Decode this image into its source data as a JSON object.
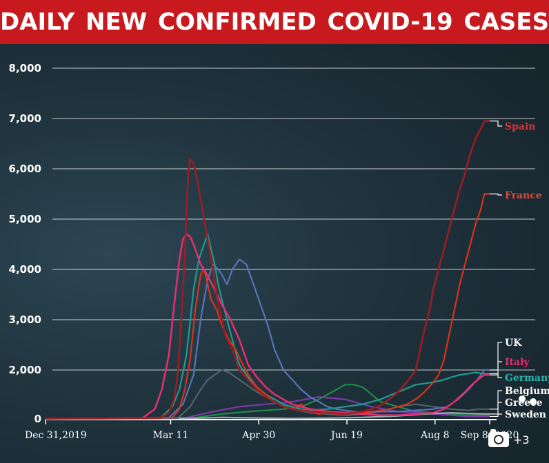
{
  "title": "DAILY  NEW CONFIRMED COVID-19 CASES",
  "badge": {
    "count": "+3",
    "icon": "camera-icon"
  },
  "colors": {
    "Spain": "#9e1c22",
    "France": "#d9331c",
    "UK": "#5a72b8",
    "Italy": "#e0306e",
    "Germany": "#1f9b92",
    "Belgium": "#55606a",
    "Greece": "#9fa6ab",
    "Sweden": "#7a3aa8",
    "Greenish": "#1e8a4a"
  },
  "chart_data": {
    "type": "line",
    "title": "DAILY  NEW CONFIRMED COVID-19 CASES",
    "xlabel": "",
    "ylabel": "",
    "x_ticks": [
      "Dec 31,2019",
      "Mar 11",
      "Apr 30",
      "Jun 19",
      "Aug 8",
      "Sep 8, 2020"
    ],
    "x_tick_day": [
      0,
      71,
      121,
      171,
      221,
      252
    ],
    "y_ticks": [
      "0",
      "2,000",
      "3,000",
      "4,000",
      "5,000",
      "6,000",
      "7,000",
      "8,000"
    ],
    "y_tick_values": [
      0,
      2000,
      3000,
      4000,
      5000,
      6000,
      7000,
      8000
    ],
    "ylim": [
      0,
      8000
    ],
    "xlim_day": [
      0,
      252
    ],
    "grid": true,
    "series": [
      {
        "name": "Spain",
        "x": [
          0,
          65,
          70,
          73,
          75,
          77,
          79,
          80,
          81,
          82,
          84,
          86,
          88,
          90,
          94,
          98,
          102,
          106,
          110,
          115,
          120,
          125,
          130,
          135,
          140,
          145,
          150,
          160,
          170,
          180,
          185,
          190,
          195,
          200,
          205,
          210,
          215,
          218,
          220,
          223,
          226,
          229,
          232,
          235,
          238,
          241,
          244,
          247,
          249,
          252
        ],
        "y": [
          0,
          30,
          250,
          800,
          1800,
          3000,
          4200,
          5200,
          5900,
          6200,
          6100,
          5800,
          5400,
          5000,
          4200,
          3300,
          2700,
          2400,
          2000,
          1600,
          1200,
          900,
          700,
          500,
          400,
          350,
          300,
          250,
          200,
          300,
          400,
          550,
          800,
          1100,
          1500,
          2000,
          2800,
          3200,
          3600,
          4000,
          4400,
          4800,
          5200,
          5600,
          5900,
          6300,
          6600,
          6800,
          6950,
          6950
        ]
      },
      {
        "name": "France",
        "x": [
          0,
          72,
          76,
          79,
          82,
          85,
          88,
          90,
          92,
          94,
          97,
          100,
          104,
          108,
          112,
          116,
          120,
          125,
          130,
          135,
          140,
          145,
          150,
          155,
          160,
          165,
          170,
          175,
          180,
          185,
          190,
          195,
          200,
          205,
          210,
          215,
          220,
          223,
          226,
          229,
          232,
          235,
          238,
          241,
          244,
          247,
          249,
          252
        ],
        "y": [
          0,
          50,
          400,
          1200,
          2200,
          3200,
          3900,
          4000,
          3700,
          3400,
          3200,
          2900,
          2600,
          2400,
          2100,
          1700,
          1300,
          1000,
          700,
          500,
          400,
          600,
          300,
          200,
          250,
          200,
          250,
          300,
          250,
          300,
          350,
          400,
          500,
          600,
          800,
          1100,
          1500,
          1800,
          2200,
          2700,
          3200,
          3700,
          4100,
          4500,
          4900,
          5200,
          5500,
          5500
        ]
      },
      {
        "name": "UK",
        "x": [
          0,
          70,
          78,
          84,
          88,
          92,
          95,
          98,
          100,
          103,
          106,
          110,
          114,
          118,
          122,
          126,
          130,
          135,
          140,
          145,
          150,
          155,
          160,
          165,
          170,
          175,
          180,
          190,
          200,
          210,
          220,
          228,
          234,
          240,
          245,
          249,
          252
        ],
        "y": [
          0,
          50,
          600,
          1800,
          3000,
          3800,
          4100,
          4000,
          3900,
          3700,
          4000,
          4200,
          4100,
          3700,
          3300,
          2900,
          2400,
          2000,
          1600,
          1200,
          900,
          700,
          500,
          400,
          350,
          300,
          250,
          300,
          300,
          350,
          400,
          500,
          800,
          1200,
          1600,
          2000,
          2000
        ]
      },
      {
        "name": "Italy",
        "x": [
          0,
          55,
          62,
          66,
          70,
          73,
          76,
          78,
          80,
          82,
          84,
          86,
          88,
          90,
          93,
          96,
          100,
          105,
          110,
          115,
          120,
          125,
          130,
          135,
          140,
          150,
          160,
          170,
          180,
          190,
          200,
          210,
          220,
          226,
          232,
          238,
          242,
          246,
          249,
          252
        ],
        "y": [
          0,
          30,
          400,
          1200,
          2300,
          3300,
          4200,
          4600,
          4700,
          4650,
          4500,
          4300,
          4100,
          4000,
          3800,
          3600,
          3300,
          3000,
          2600,
          2100,
          1700,
          1300,
          1000,
          800,
          600,
          400,
          300,
          250,
          200,
          150,
          150,
          200,
          250,
          400,
          700,
          1100,
          1400,
          1650,
          1800,
          1800
        ]
      },
      {
        "name": "Germany",
        "x": [
          0,
          65,
          72,
          76,
          80,
          84,
          87,
          90,
          92,
          94,
          96,
          98,
          100,
          103,
          106,
          110,
          115,
          120,
          125,
          130,
          135,
          140,
          145,
          150,
          160,
          170,
          180,
          190,
          200,
          210,
          220,
          226,
          230,
          235,
          240,
          244,
          248,
          252
        ],
        "y": [
          0,
          30,
          500,
          1200,
          2300,
          3600,
          4200,
          4500,
          4700,
          4400,
          4100,
          3700,
          3400,
          3000,
          2600,
          2100,
          1700,
          1300,
          1000,
          800,
          600,
          500,
          400,
          350,
          400,
          500,
          600,
          800,
          1100,
          1400,
          1500,
          1600,
          1700,
          1800,
          1850,
          1900,
          1850,
          1850
        ]
      },
      {
        "name": "Belgium",
        "x": [
          0,
          75,
          82,
          88,
          92,
          96,
          100,
          104,
          108,
          112,
          116,
          120,
          130,
          140,
          150,
          160,
          170,
          180,
          190,
          200,
          210,
          220,
          230,
          240,
          246,
          252
        ],
        "y": [
          0,
          30,
          500,
          1200,
          1600,
          1800,
          2000,
          1900,
          1700,
          1500,
          1300,
          1100,
          700,
          400,
          250,
          200,
          150,
          200,
          300,
          500,
          600,
          500,
          400,
          350,
          400,
          400
        ]
      },
      {
        "name": "Greece",
        "x": [
          0,
          80,
          100,
          120,
          140,
          160,
          180,
          200,
          215,
          230,
          240,
          252
        ],
        "y": [
          0,
          20,
          60,
          40,
          20,
          30,
          60,
          120,
          200,
          250,
          220,
          200
        ]
      },
      {
        "name": "Sweden",
        "x": [
          0,
          80,
          95,
          110,
          125,
          140,
          155,
          170,
          185,
          200,
          220,
          240,
          252
        ],
        "y": [
          0,
          50,
          300,
          500,
          600,
          700,
          900,
          800,
          500,
          300,
          200,
          100,
          100
        ]
      },
      {
        "name": "",
        "x": [
          0,
          85,
          100,
          115,
          125,
          135,
          145,
          155,
          165,
          170,
          175,
          180,
          185,
          190,
          200,
          210,
          220,
          230,
          240,
          252
        ],
        "y": [
          0,
          50,
          200,
          300,
          350,
          400,
          500,
          800,
          1200,
          1400,
          1400,
          1300,
          1000,
          700,
          500,
          300,
          250,
          200,
          150,
          150
        ]
      }
    ],
    "legend_labels": [
      {
        "name": "Spain",
        "y_value": 6950
      },
      {
        "name": "France",
        "y_value": 5500
      },
      {
        "name": "UK",
        "y_value": 2000
      },
      {
        "name": "Italy",
        "y_value": 1800
      },
      {
        "name": "Germany",
        "y_value": 1850
      },
      {
        "name": "Belgium",
        "y_value": 400
      },
      {
        "name": "Greece",
        "y_value": 200
      },
      {
        "name": "Sweden",
        "y_value": 100
      }
    ]
  }
}
